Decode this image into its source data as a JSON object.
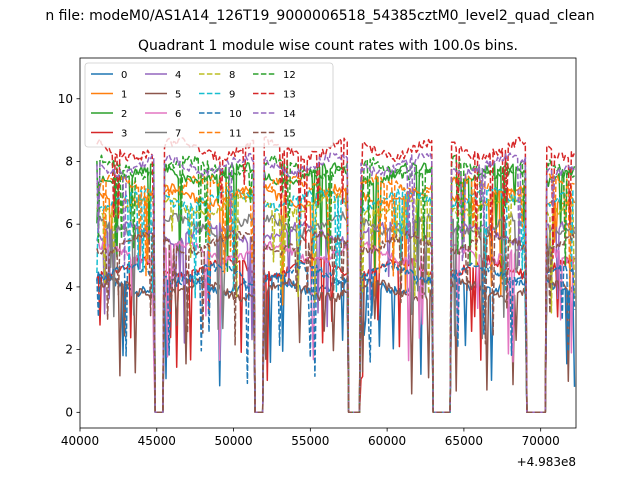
{
  "chart_data": {
    "type": "line",
    "suptitle": "n file: modeM0/AS1A14_126T19_9000006518_54385cztM0_level2_quad_clean",
    "title": "Quadrant 1 module wise count rates with 100.0s bins.",
    "xlabel": "",
    "ylabel": "",
    "x_offset_label": "+4.983e8",
    "xlim": [
      40000,
      72300
    ],
    "ylim": [
      -0.5,
      11.3
    ],
    "x_ticks": [
      40000,
      45000,
      50000,
      55000,
      60000,
      65000,
      70000
    ],
    "x_tick_labels": [
      "40000",
      "45000",
      "50000",
      "55000",
      "60000",
      "65000",
      "70000"
    ],
    "y_ticks": [
      0,
      2,
      4,
      6,
      8,
      10
    ],
    "y_tick_labels": [
      "0",
      "2",
      "4",
      "6",
      "8",
      "10"
    ],
    "grid": false,
    "legend_placement": "top-left",
    "legend_columns": 4,
    "x_range": [
      41100,
      72200
    ],
    "bin_seconds": 100,
    "gaps": [
      [
        44800,
        45500
      ],
      [
        51300,
        52000
      ],
      [
        57400,
        58300
      ],
      [
        62900,
        64200
      ],
      [
        69000,
        70400
      ]
    ],
    "series": [
      {
        "name": "0",
        "color": "#1f77b4",
        "style": "solid",
        "level": 4.1
      },
      {
        "name": "1",
        "color": "#ff7f0e",
        "style": "solid",
        "level": 6.9
      },
      {
        "name": "2",
        "color": "#2ca02c",
        "style": "solid",
        "level": 7.6
      },
      {
        "name": "3",
        "color": "#d62728",
        "style": "solid",
        "level": 4.6
      },
      {
        "name": "4",
        "color": "#9467bd",
        "style": "solid",
        "level": 5.7
      },
      {
        "name": "5",
        "color": "#8c564b",
        "style": "solid",
        "level": 3.9
      },
      {
        "name": "6",
        "color": "#e377c2",
        "style": "solid",
        "level": 5.1
      },
      {
        "name": "7",
        "color": "#7f7f7f",
        "style": "solid",
        "level": 6.0
      },
      {
        "name": "8",
        "color": "#bcbd22",
        "style": "dashed",
        "level": 6.6
      },
      {
        "name": "9",
        "color": "#17becf",
        "style": "dashed",
        "level": 6.8
      },
      {
        "name": "10",
        "color": "#1f77b4",
        "style": "dashed",
        "level": 4.4
      },
      {
        "name": "11",
        "color": "#ff7f0e",
        "style": "dashed",
        "level": 7.2
      },
      {
        "name": "12",
        "color": "#2ca02c",
        "style": "dashed",
        "level": 7.8
      },
      {
        "name": "13",
        "color": "#d62728",
        "style": "dashed",
        "level": 8.4
      },
      {
        "name": "14",
        "color": "#9467bd",
        "style": "dashed",
        "level": 7.9
      },
      {
        "name": "15",
        "color": "#8c564b",
        "style": "dashed",
        "level": 5.4
      }
    ]
  }
}
